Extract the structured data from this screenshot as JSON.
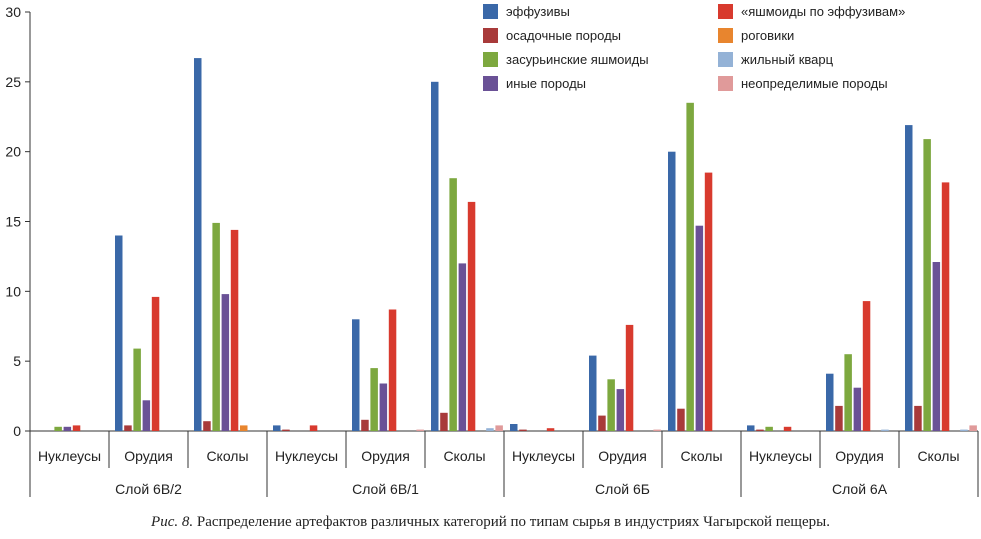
{
  "chart_data": {
    "type": "bar",
    "title": "",
    "ylim": [
      0,
      30
    ],
    "yticks": [
      0,
      5,
      10,
      15,
      20,
      25,
      30
    ],
    "groups": [
      {
        "label": "Слой 6В/2",
        "subcategories": [
          "Нуклеусы",
          "Орудия",
          "Сколы"
        ]
      },
      {
        "label": "Слой 6В/1",
        "subcategories": [
          "Нуклеусы",
          "Орудия",
          "Сколы"
        ]
      },
      {
        "label": "Слой 6Б",
        "subcategories": [
          "Нуклеусы",
          "Орудия",
          "Сколы"
        ]
      },
      {
        "label": "Слой 6А",
        "subcategories": [
          "Нуклеусы",
          "Орудия",
          "Сколы"
        ]
      }
    ],
    "series": [
      {
        "name": "эффузивы",
        "color": "#3a68a8",
        "values": [
          0,
          14.0,
          26.7,
          0.4,
          8.0,
          25.0,
          0.5,
          5.4,
          20.0,
          0.4,
          4.1,
          21.9
        ]
      },
      {
        "name": "осадочные породы",
        "color": "#a83a3a",
        "values": [
          0,
          0.4,
          0.7,
          0.1,
          0.8,
          1.3,
          0.1,
          1.1,
          1.6,
          0.1,
          1.8,
          1.8
        ]
      },
      {
        "name": "засурьинские яшмоиды",
        "color": "#7da83f",
        "values": [
          0.3,
          5.9,
          14.9,
          0,
          4.5,
          18.1,
          0,
          3.7,
          23.5,
          0.3,
          5.5,
          20.9
        ]
      },
      {
        "name": "иные породы",
        "color": "#6a5196",
        "values": [
          0.3,
          2.2,
          9.8,
          0,
          3.4,
          12.0,
          0,
          3.0,
          14.7,
          0,
          3.1,
          12.1
        ]
      },
      {
        "name": "«яшмоиды по эффузивам»",
        "color": "#d83a2e",
        "values": [
          0.4,
          9.6,
          14.4,
          0.4,
          8.7,
          16.4,
          0.2,
          7.6,
          18.5,
          0.3,
          9.3,
          17.8
        ]
      },
      {
        "name": "роговики",
        "color": "#e8852e",
        "values": [
          0,
          0,
          0.4,
          0,
          0,
          0,
          0,
          0,
          0,
          0,
          0,
          0
        ]
      },
      {
        "name": "жильный кварц",
        "color": "#94b2d6",
        "values": [
          0,
          0,
          0,
          0,
          0,
          0.2,
          0,
          0,
          0,
          0,
          0.1,
          0.1
        ]
      },
      {
        "name": "неопределимые породы",
        "color": "#e09a9a",
        "values": [
          0,
          0,
          0,
          0,
          0.1,
          0.4,
          0,
          0.1,
          0,
          0,
          0,
          0.4
        ]
      }
    ]
  },
  "caption": {
    "figure_label": "Рис. 8.",
    "text": " Распределение артефактов различных категорий по типам сырья в индустриях Чагырской пещеры."
  }
}
